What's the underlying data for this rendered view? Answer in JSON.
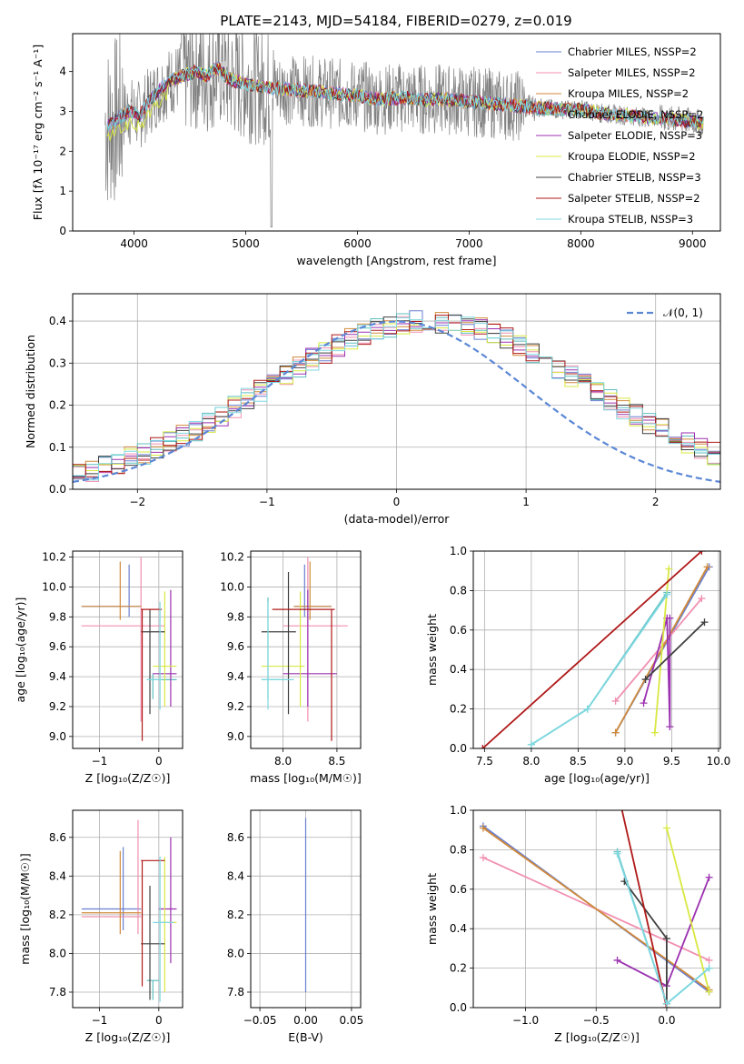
{
  "title": "PLATE=2143, MJD=54184, FIBERID=0279, z=0.019",
  "colors": {
    "series": [
      "#6a7fd0",
      "#f08fb0",
      "#d08a3a",
      "#5fbfbf",
      "#9b30b0",
      "#d8e840",
      "#404040",
      "#b01818",
      "#7fd8e0"
    ],
    "data": "#808080",
    "gauss": "#5b87d6",
    "grid": "#b0b0b0"
  },
  "chart_data": [
    {
      "id": "spectrum",
      "type": "line",
      "xlabel": "wavelength [Angstrom, rest frame]",
      "ylabel": "Flux [fλ 10⁻¹⁷ erg cm⁻² s⁻¹ A⁻¹]",
      "xlim": [
        3450,
        9250
      ],
      "ylim": [
        0,
        4.95
      ],
      "xticks": [
        "4000",
        "5000",
        "6000",
        "7000",
        "8000",
        "9000"
      ],
      "yticks": [
        "0",
        "1",
        "2",
        "3",
        "4"
      ],
      "legend_position": "right",
      "legend": [
        "Chabrier MILES, NSSP=2",
        "Salpeter MILES, NSSP=2",
        "Kroupa MILES, NSSP=2",
        "Chabrier ELODIE, NSSP=2",
        "Salpeter ELODIE, NSSP=3",
        "Kroupa ELODIE, NSSP=2",
        "Chabrier STELIB, NSSP=3",
        "Salpeter STELIB, NSSP=2",
        "Kroupa STELIB, NSSP=3"
      ],
      "model_shape": {
        "x": [
          3750,
          3850,
          3950,
          4050,
          4150,
          4250,
          4350,
          4450,
          4550,
          4650,
          4750,
          4850,
          5000,
          5200,
          5400,
          5600,
          5800,
          6000,
          6200,
          6400,
          6600,
          6800,
          7000,
          7200,
          7400,
          7600,
          7800,
          8000,
          8200,
          8400,
          8600,
          8800,
          9000,
          9100
        ],
        "y": [
          2.6,
          2.8,
          3.0,
          2.9,
          3.3,
          3.6,
          3.8,
          3.9,
          4.0,
          3.9,
          4.1,
          3.8,
          3.7,
          3.6,
          3.55,
          3.5,
          3.45,
          3.4,
          3.3,
          3.35,
          3.3,
          3.3,
          3.25,
          3.2,
          3.15,
          3.1,
          3.05,
          3.05,
          2.95,
          2.9,
          2.85,
          2.8,
          2.75,
          2.7
        ]
      }
    },
    {
      "id": "residuals",
      "type": "step",
      "xlabel": "(data-model)/error",
      "ylabel": "Normed distribution",
      "xlim": [
        -2.5,
        2.5
      ],
      "ylim": [
        0,
        0.465
      ],
      "xticks": [
        "−2",
        "−1",
        "0",
        "1",
        "2"
      ],
      "yticks": [
        "0.0",
        "0.1",
        "0.2",
        "0.3",
        "0.4"
      ],
      "legend": [
        "𝒩(0, 1)"
      ],
      "bin_width": 0.1
    },
    {
      "id": "age-z",
      "type": "errorbar",
      "xlabel": "Z [log₁₀(Z/Z☉)]",
      "ylabel": "age  [log₁₀(age/yr)]",
      "xlim": [
        -1.45,
        0.4
      ],
      "ylim": [
        8.92,
        10.24
      ],
      "xticks": [
        -1,
        0
      ],
      "xticklabels": [
        "−1",
        "0"
      ],
      "yticks": [
        "9.0",
        "9.2",
        "9.4",
        "9.6",
        "9.8",
        "10.0",
        "10.2"
      ],
      "points": [
        {
          "x": -0.5,
          "y": 9.87,
          "xl": -1.3,
          "xh": -0.3,
          "yl": 9.8,
          "yh": 10.15
        },
        {
          "x": -0.3,
          "y": 9.74,
          "xl": -1.3,
          "xh": 0.1,
          "yl": 9.1,
          "yh": 10.2
        },
        {
          "x": -0.65,
          "y": 9.87,
          "xl": -1.3,
          "xh": -0.3,
          "yl": 9.78,
          "yh": 10.17
        },
        {
          "x": -0.1,
          "y": 9.38,
          "xl": -0.2,
          "xh": 0.3,
          "yl": 9.25,
          "yh": 9.42
        },
        {
          "x": 0.2,
          "y": 9.42,
          "xl": -0.1,
          "xh": 0.3,
          "yl": 9.2,
          "yh": 9.98
        },
        {
          "x": 0.1,
          "y": 9.47,
          "xl": -0.1,
          "xh": 0.3,
          "yl": 9.2,
          "yh": 9.97
        },
        {
          "x": -0.15,
          "y": 9.7,
          "xl": -0.3,
          "xh": 0.1,
          "yl": 9.15,
          "yh": 9.85
        },
        {
          "x": -0.28,
          "y": 9.85,
          "xl": -0.3,
          "xh": 0.05,
          "yl": 8.97,
          "yh": 9.85
        },
        {
          "x": 0.02,
          "y": 9.38,
          "xl": -0.2,
          "xh": 0.05,
          "yl": 9.18,
          "yh": 9.9
        }
      ]
    },
    {
      "id": "age-mass",
      "type": "errorbar",
      "xlabel": "mass [log₁₀(M/M☉)]",
      "xlim": [
        7.7,
        8.72
      ],
      "ylim": [
        8.92,
        10.24
      ],
      "xticks": [
        8.0,
        8.5
      ],
      "xticklabels": [
        "8.0",
        "8.5"
      ],
      "yticks": [
        "9.0",
        "9.2",
        "9.4",
        "9.6",
        "9.8",
        "10.0",
        "10.2"
      ],
      "points": [
        {
          "x": 8.2,
          "y": 9.87,
          "xl": 8.1,
          "xh": 8.45,
          "yl": 9.8,
          "yh": 10.15
        },
        {
          "x": 8.23,
          "y": 9.74,
          "xl": 8.0,
          "xh": 8.6,
          "yl": 9.1,
          "yh": 10.2
        },
        {
          "x": 8.25,
          "y": 9.87,
          "xl": 8.1,
          "xh": 8.45,
          "yl": 9.78,
          "yh": 10.17
        },
        {
          "x": 7.86,
          "y": 9.38,
          "xl": 7.8,
          "xh": 8.05,
          "yl": 9.25,
          "yh": 9.93
        },
        {
          "x": 8.23,
          "y": 9.42,
          "xl": 8.0,
          "xh": 8.5,
          "yl": 9.2,
          "yh": 9.98
        },
        {
          "x": 8.16,
          "y": 9.47,
          "xl": 7.8,
          "xh": 8.2,
          "yl": 9.2,
          "yh": 9.97
        },
        {
          "x": 8.05,
          "y": 9.7,
          "xl": 7.8,
          "xh": 8.12,
          "yl": 9.15,
          "yh": 10.1
        },
        {
          "x": 8.45,
          "y": 9.85,
          "xl": 7.9,
          "xh": 8.48,
          "yl": 8.97,
          "yh": 9.85
        },
        {
          "x": 7.86,
          "y": 9.38,
          "xl": 7.8,
          "xh": 8.1,
          "yl": 9.18,
          "yh": 9.9
        }
      ]
    },
    {
      "id": "weight-age",
      "type": "line",
      "xlabel": "age  [log₁₀(age/yr)]",
      "ylabel": "mass weight",
      "xlim": [
        7.38,
        10.02
      ],
      "ylim": [
        0,
        1
      ],
      "xticks": [
        7.5,
        8.0,
        8.5,
        9.0,
        9.5,
        10.0
      ],
      "xticklabels": [
        "7.5",
        "8.0",
        "8.5",
        "9.0",
        "9.5",
        "10.0"
      ],
      "yticks": [
        "0.0",
        "0.2",
        "0.4",
        "0.6",
        "0.8",
        "1.0"
      ],
      "series": [
        {
          "x": [
            8.9,
            9.9
          ],
          "y": [
            0.08,
            0.92
          ]
        },
        {
          "x": [
            8.9,
            9.82
          ],
          "y": [
            0.24,
            0.76
          ]
        },
        {
          "x": [
            8.9,
            9.88
          ],
          "y": [
            0.08,
            0.92
          ]
        },
        {
          "x": [
            8.0,
            8.6,
            9.45
          ],
          "y": [
            0.02,
            0.2,
            0.79
          ]
        },
        {
          "x": [
            9.2,
            9.45,
            9.48,
            9.48
          ],
          "y": [
            0.23,
            0.66,
            0.11,
            0.66
          ]
        },
        {
          "x": [
            9.32,
            9.47
          ],
          "y": [
            0.08,
            0.91
          ]
        },
        {
          "x": [
            9.22,
            9.85
          ],
          "y": [
            0.35,
            0.64
          ]
        },
        {
          "x": [
            7.48,
            9.82
          ],
          "y": [
            0.0,
            1.0
          ]
        },
        {
          "x": [
            8.0,
            8.6,
            9.45
          ],
          "y": [
            0.02,
            0.2,
            0.78
          ]
        }
      ]
    },
    {
      "id": "mass-z",
      "type": "errorbar",
      "xlabel": "Z [log₁₀(Z/Z☉)]",
      "ylabel": "mass [log₁₀(M/M☉)]",
      "xlim": [
        -1.45,
        0.4
      ],
      "ylim": [
        7.72,
        8.74
      ],
      "xticks": [
        -1,
        0
      ],
      "xticklabels": [
        "−1",
        "0"
      ],
      "yticks": [
        "7.8",
        "8.0",
        "8.2",
        "8.4",
        "8.6"
      ],
      "points": [
        {
          "x": -0.6,
          "y": 8.23,
          "xl": -1.3,
          "xh": -0.3,
          "yl": 8.12,
          "yh": 8.55
        },
        {
          "x": -0.35,
          "y": 8.19,
          "xl": -1.3,
          "xh": -0.3,
          "yl": 8.1,
          "yh": 8.69
        },
        {
          "x": -0.65,
          "y": 8.21,
          "xl": -1.3,
          "xh": -0.3,
          "yl": 8.1,
          "yh": 8.53
        },
        {
          "x": -0.1,
          "y": 7.86,
          "xl": -0.2,
          "xh": 0.0,
          "yl": 7.76,
          "yh": 7.86
        },
        {
          "x": 0.2,
          "y": 8.23,
          "xl": 0.0,
          "xh": 0.3,
          "yl": 7.95,
          "yh": 8.6
        },
        {
          "x": 0.1,
          "y": 8.16,
          "xl": 0.0,
          "xh": 0.3,
          "yl": 7.8,
          "yh": 8.5
        },
        {
          "x": -0.15,
          "y": 8.05,
          "xl": -0.3,
          "xh": 0.1,
          "yl": 7.76,
          "yh": 8.35
        },
        {
          "x": -0.28,
          "y": 8.48,
          "xl": -0.3,
          "xh": 0.1,
          "yl": 7.83,
          "yh": 8.48
        },
        {
          "x": 0.02,
          "y": 8.16,
          "xl": -0.1,
          "xh": 0.25,
          "yl": 7.75,
          "yh": 8.5
        }
      ]
    },
    {
      "id": "mass-ebv",
      "type": "errorbar",
      "xlabel": "E(B-V)",
      "xlim": [
        -0.06,
        0.06
      ],
      "ylim": [
        7.72,
        8.74
      ],
      "xticks": [
        -0.05,
        0.0,
        0.05
      ],
      "xticklabels": [
        "−0.05",
        "0.00",
        "0.05"
      ],
      "yticks": [
        "7.8",
        "8.0",
        "8.2",
        "8.4",
        "8.6"
      ],
      "points": [
        {
          "x": 0.0,
          "y": 8.2,
          "xl": 0.0,
          "xh": 0.0,
          "yl": 7.8,
          "yh": 8.7
        }
      ]
    },
    {
      "id": "weight-z",
      "type": "line",
      "xlabel": "Z [log₁₀(Z/Z☉)]",
      "ylabel": "mass weight",
      "xlim": [
        -1.37,
        0.38
      ],
      "ylim": [
        0,
        1
      ],
      "xticks": [
        -1.0,
        -0.5,
        0.0
      ],
      "xticklabels": [
        "−1.0",
        "−0.5",
        "0.0"
      ],
      "yticks": [
        "0.0",
        "0.2",
        "0.4",
        "0.6",
        "0.8",
        "1.0"
      ],
      "series": [
        {
          "x": [
            -1.3,
            0.3
          ],
          "y": [
            0.92,
            0.08
          ]
        },
        {
          "x": [
            -1.3,
            0.3
          ],
          "y": [
            0.76,
            0.24
          ]
        },
        {
          "x": [
            -1.3,
            0.3
          ],
          "y": [
            0.91,
            0.09
          ]
        },
        {
          "x": [
            -0.35,
            0.0,
            0.3
          ],
          "y": [
            0.79,
            0.02,
            0.2
          ]
        },
        {
          "x": [
            -0.35,
            0.0,
            0.3
          ],
          "y": [
            0.24,
            0.11,
            0.66
          ]
        },
        {
          "x": [
            0.0,
            0.3
          ],
          "y": [
            0.91,
            0.08
          ]
        },
        {
          "x": [
            -0.3,
            0.0,
            0.0
          ],
          "y": [
            0.64,
            0.35,
            0.02
          ]
        },
        {
          "x": [
            -0.38,
            0.0
          ],
          "y": [
            1.2,
            0.0
          ]
        },
        {
          "x": [
            -0.35,
            0.0,
            0.3
          ],
          "y": [
            0.78,
            0.02,
            0.2
          ]
        }
      ]
    }
  ]
}
